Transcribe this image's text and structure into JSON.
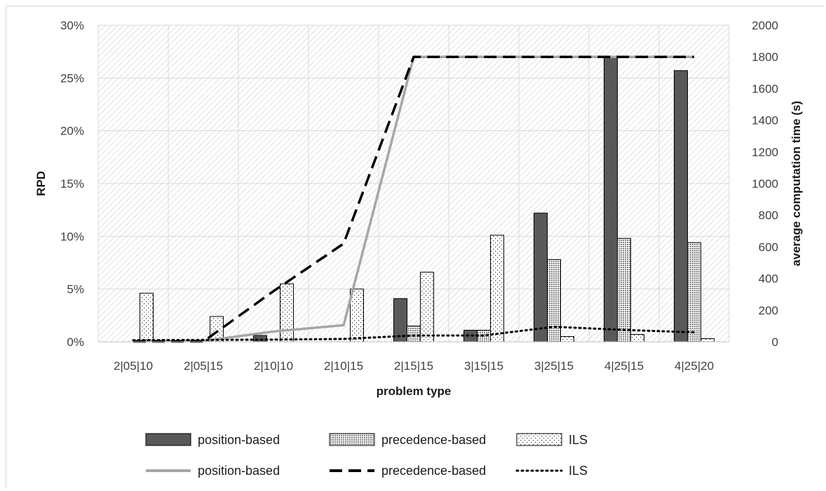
{
  "chart_data": {
    "type": "bar",
    "categories": [
      "2|05|10",
      "2|05|15",
      "2|10|10",
      "2|10|15",
      "2|15|15",
      "3|15|15",
      "3|25|15",
      "4|25|15",
      "4|25|20"
    ],
    "xlabel": "problem type",
    "ylabel": "RPD",
    "y2label": "average computation time (s)",
    "ylim": [
      0,
      0.3
    ],
    "y2lim": [
      0,
      2000
    ],
    "yticks": [
      "0%",
      "5%",
      "10%",
      "15%",
      "20%",
      "25%",
      "30%"
    ],
    "y2ticks": [
      "0",
      "200",
      "400",
      "600",
      "800",
      "1000",
      "1200",
      "1400",
      "1600",
      "1800",
      "2000"
    ],
    "bar_series": [
      {
        "name": "position-based",
        "color": "#595959",
        "pattern": "solid",
        "values": [
          0,
          0,
          0.006,
          0,
          0.041,
          0.011,
          0.122,
          0.27,
          0.257
        ]
      },
      {
        "name": "precedence-based",
        "color": "#a6a6a6",
        "pattern": "grid",
        "values": [
          0,
          0,
          0,
          0,
          0.015,
          0.011,
          0.078,
          0.098,
          0.094
        ]
      },
      {
        "name": "ILS",
        "color": "#ffffff",
        "pattern": "dots",
        "values": [
          0.046,
          0.024,
          0.055,
          0.05,
          0.066,
          0.101,
          0.005,
          0.007,
          0.003
        ]
      }
    ],
    "line_series": [
      {
        "name": "position-based",
        "axis": "right",
        "color": "#a6a6a6",
        "style": "solid",
        "values": [
          5,
          5,
          65,
          105,
          1800,
          1800,
          1800,
          1800,
          1800
        ]
      },
      {
        "name": "precedence-based",
        "axis": "right",
        "color": "#000000",
        "style": "dashed",
        "values": [
          2,
          2,
          320,
          620,
          1800,
          1800,
          1800,
          1800,
          1800
        ]
      },
      {
        "name": "ILS",
        "axis": "right",
        "color": "#000000",
        "style": "dotted",
        "values": [
          10,
          12,
          14,
          18,
          40,
          40,
          95,
          75,
          60
        ]
      }
    ],
    "legend_position": "bottom",
    "grid": true
  }
}
